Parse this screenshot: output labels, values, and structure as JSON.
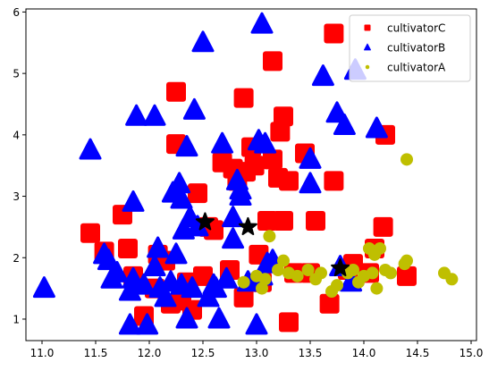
{
  "chart_data": {
    "type": "scatter",
    "xlim": [
      10.85,
      15.05
    ],
    "ylim": [
      0.65,
      6.05
    ],
    "x_ticks": [
      11.0,
      11.5,
      12.0,
      12.5,
      13.0,
      13.5,
      14.0,
      14.5,
      15.0
    ],
    "y_ticks": [
      1,
      2,
      3,
      4,
      5,
      6
    ],
    "x_tick_labels": [
      "11.0",
      "11.5",
      "12.0",
      "12.5",
      "13.0",
      "13.5",
      "14.0",
      "14.5",
      "15.0"
    ],
    "y_tick_labels": [
      "1",
      "2",
      "3",
      "4",
      "5",
      "6"
    ],
    "grid": false,
    "legend_position": "top-right",
    "series": [
      {
        "name": "cultivatorC",
        "marker": "square",
        "color": "#ff0000",
        "points": [
          [
            11.45,
            2.4
          ],
          [
            11.58,
            2.1
          ],
          [
            11.75,
            2.7
          ],
          [
            11.8,
            2.15
          ],
          [
            11.85,
            1.7
          ],
          [
            11.95,
            1.05
          ],
          [
            12.05,
            1.5
          ],
          [
            12.08,
            2.05
          ],
          [
            12.15,
            1.95
          ],
          [
            12.2,
            1.25
          ],
          [
            12.25,
            4.7
          ],
          [
            12.25,
            3.85
          ],
          [
            12.3,
            1.3
          ],
          [
            12.35,
            1.6
          ],
          [
            12.4,
            1.15
          ],
          [
            12.45,
            3.05
          ],
          [
            12.5,
            1.7
          ],
          [
            12.55,
            2.5
          ],
          [
            12.6,
            2.45
          ],
          [
            12.68,
            3.55
          ],
          [
            12.75,
            1.8
          ],
          [
            12.78,
            3.45
          ],
          [
            12.82,
            3.25
          ],
          [
            12.88,
            4.6
          ],
          [
            12.88,
            1.35
          ],
          [
            12.9,
            3.4
          ],
          [
            12.95,
            3.8
          ],
          [
            12.98,
            3.5
          ],
          [
            13.02,
            2.05
          ],
          [
            13.05,
            1.6
          ],
          [
            13.1,
            2.6
          ],
          [
            13.15,
            3.6
          ],
          [
            13.15,
            5.2
          ],
          [
            13.2,
            3.3
          ],
          [
            13.22,
            4.05
          ],
          [
            13.25,
            4.3
          ],
          [
            13.25,
            2.6
          ],
          [
            13.3,
            3.25
          ],
          [
            13.3,
            0.95
          ],
          [
            13.35,
            1.75
          ],
          [
            13.45,
            3.7
          ],
          [
            13.5,
            1.75
          ],
          [
            13.55,
            2.6
          ],
          [
            13.68,
            1.25
          ],
          [
            13.72,
            3.25
          ],
          [
            13.72,
            5.65
          ],
          [
            13.85,
            1.8
          ],
          [
            13.9,
            1.9
          ],
          [
            14.05,
            1.75
          ],
          [
            14.1,
            2.15
          ],
          [
            14.18,
            2.5
          ],
          [
            14.2,
            4.0
          ],
          [
            14.4,
            1.7
          ]
        ]
      },
      {
        "name": "cultivatorB",
        "marker": "triangle",
        "color": "#0000ff",
        "points": [
          [
            11.02,
            1.5
          ],
          [
            11.45,
            3.75
          ],
          [
            11.58,
            2.05
          ],
          [
            11.62,
            1.95
          ],
          [
            11.65,
            1.65
          ],
          [
            11.7,
            1.75
          ],
          [
            11.82,
            0.9
          ],
          [
            11.82,
            1.45
          ],
          [
            11.85,
            1.65
          ],
          [
            11.85,
            2.9
          ],
          [
            11.88,
            4.3
          ],
          [
            11.95,
            1.55
          ],
          [
            11.98,
            0.9
          ],
          [
            12.05,
            4.3
          ],
          [
            12.05,
            1.85
          ],
          [
            12.08,
            2.15
          ],
          [
            12.1,
            1.5
          ],
          [
            12.15,
            1.35
          ],
          [
            12.2,
            1.6
          ],
          [
            12.22,
            3.05
          ],
          [
            12.25,
            2.05
          ],
          [
            12.28,
            3.2
          ],
          [
            12.3,
            2.95
          ],
          [
            12.3,
            1.55
          ],
          [
            12.32,
            2.45
          ],
          [
            12.35,
            3.8
          ],
          [
            12.35,
            1.0
          ],
          [
            12.38,
            2.65
          ],
          [
            12.4,
            1.5
          ],
          [
            12.42,
            4.4
          ],
          [
            12.45,
            2.5
          ],
          [
            12.5,
            5.5
          ],
          [
            12.55,
            1.35
          ],
          [
            12.6,
            1.55
          ],
          [
            12.62,
            1.5
          ],
          [
            12.65,
            1.0
          ],
          [
            12.68,
            3.85
          ],
          [
            12.72,
            1.65
          ],
          [
            12.78,
            2.3
          ],
          [
            12.78,
            2.65
          ],
          [
            12.82,
            3.25
          ],
          [
            12.85,
            3.0
          ],
          [
            12.85,
            3.1
          ],
          [
            12.92,
            1.6
          ],
          [
            13.0,
            0.9
          ],
          [
            13.02,
            3.9
          ],
          [
            13.05,
            5.8
          ],
          [
            13.05,
            1.7
          ],
          [
            13.08,
            3.85
          ],
          [
            13.1,
            1.9
          ],
          [
            13.15,
            1.95
          ],
          [
            13.5,
            3.6
          ],
          [
            13.5,
            3.2
          ],
          [
            13.62,
            4.95
          ],
          [
            13.75,
            4.35
          ],
          [
            13.78,
            1.85
          ],
          [
            13.82,
            4.15
          ],
          [
            13.88,
            1.6
          ],
          [
            13.92,
            5.05
          ],
          [
            14.12,
            4.1
          ]
        ]
      },
      {
        "name": "cultivatorA",
        "marker": "circle",
        "color": "#bfbf00",
        "points": [
          [
            12.88,
            1.6
          ],
          [
            13.0,
            1.7
          ],
          [
            13.05,
            1.5
          ],
          [
            13.08,
            1.65
          ],
          [
            13.12,
            2.35
          ],
          [
            13.2,
            1.8
          ],
          [
            13.25,
            1.95
          ],
          [
            13.3,
            1.75
          ],
          [
            13.38,
            1.7
          ],
          [
            13.48,
            1.8
          ],
          [
            13.55,
            1.65
          ],
          [
            13.6,
            1.75
          ],
          [
            13.7,
            1.45
          ],
          [
            13.75,
            1.55
          ],
          [
            13.85,
            1.75
          ],
          [
            13.9,
            1.8
          ],
          [
            13.95,
            1.6
          ],
          [
            14.0,
            1.7
          ],
          [
            14.05,
            2.15
          ],
          [
            14.08,
            1.75
          ],
          [
            14.1,
            2.05
          ],
          [
            14.12,
            1.5
          ],
          [
            14.15,
            2.15
          ],
          [
            14.2,
            1.8
          ],
          [
            14.25,
            1.75
          ],
          [
            14.38,
            1.9
          ],
          [
            14.4,
            1.95
          ],
          [
            14.4,
            3.6
          ],
          [
            14.75,
            1.75
          ],
          [
            14.82,
            1.65
          ]
        ]
      },
      {
        "name": "",
        "marker": "star",
        "color": "#000000",
        "points": [
          [
            12.52,
            2.58
          ],
          [
            12.92,
            2.5
          ],
          [
            13.78,
            1.83
          ]
        ]
      }
    ]
  }
}
